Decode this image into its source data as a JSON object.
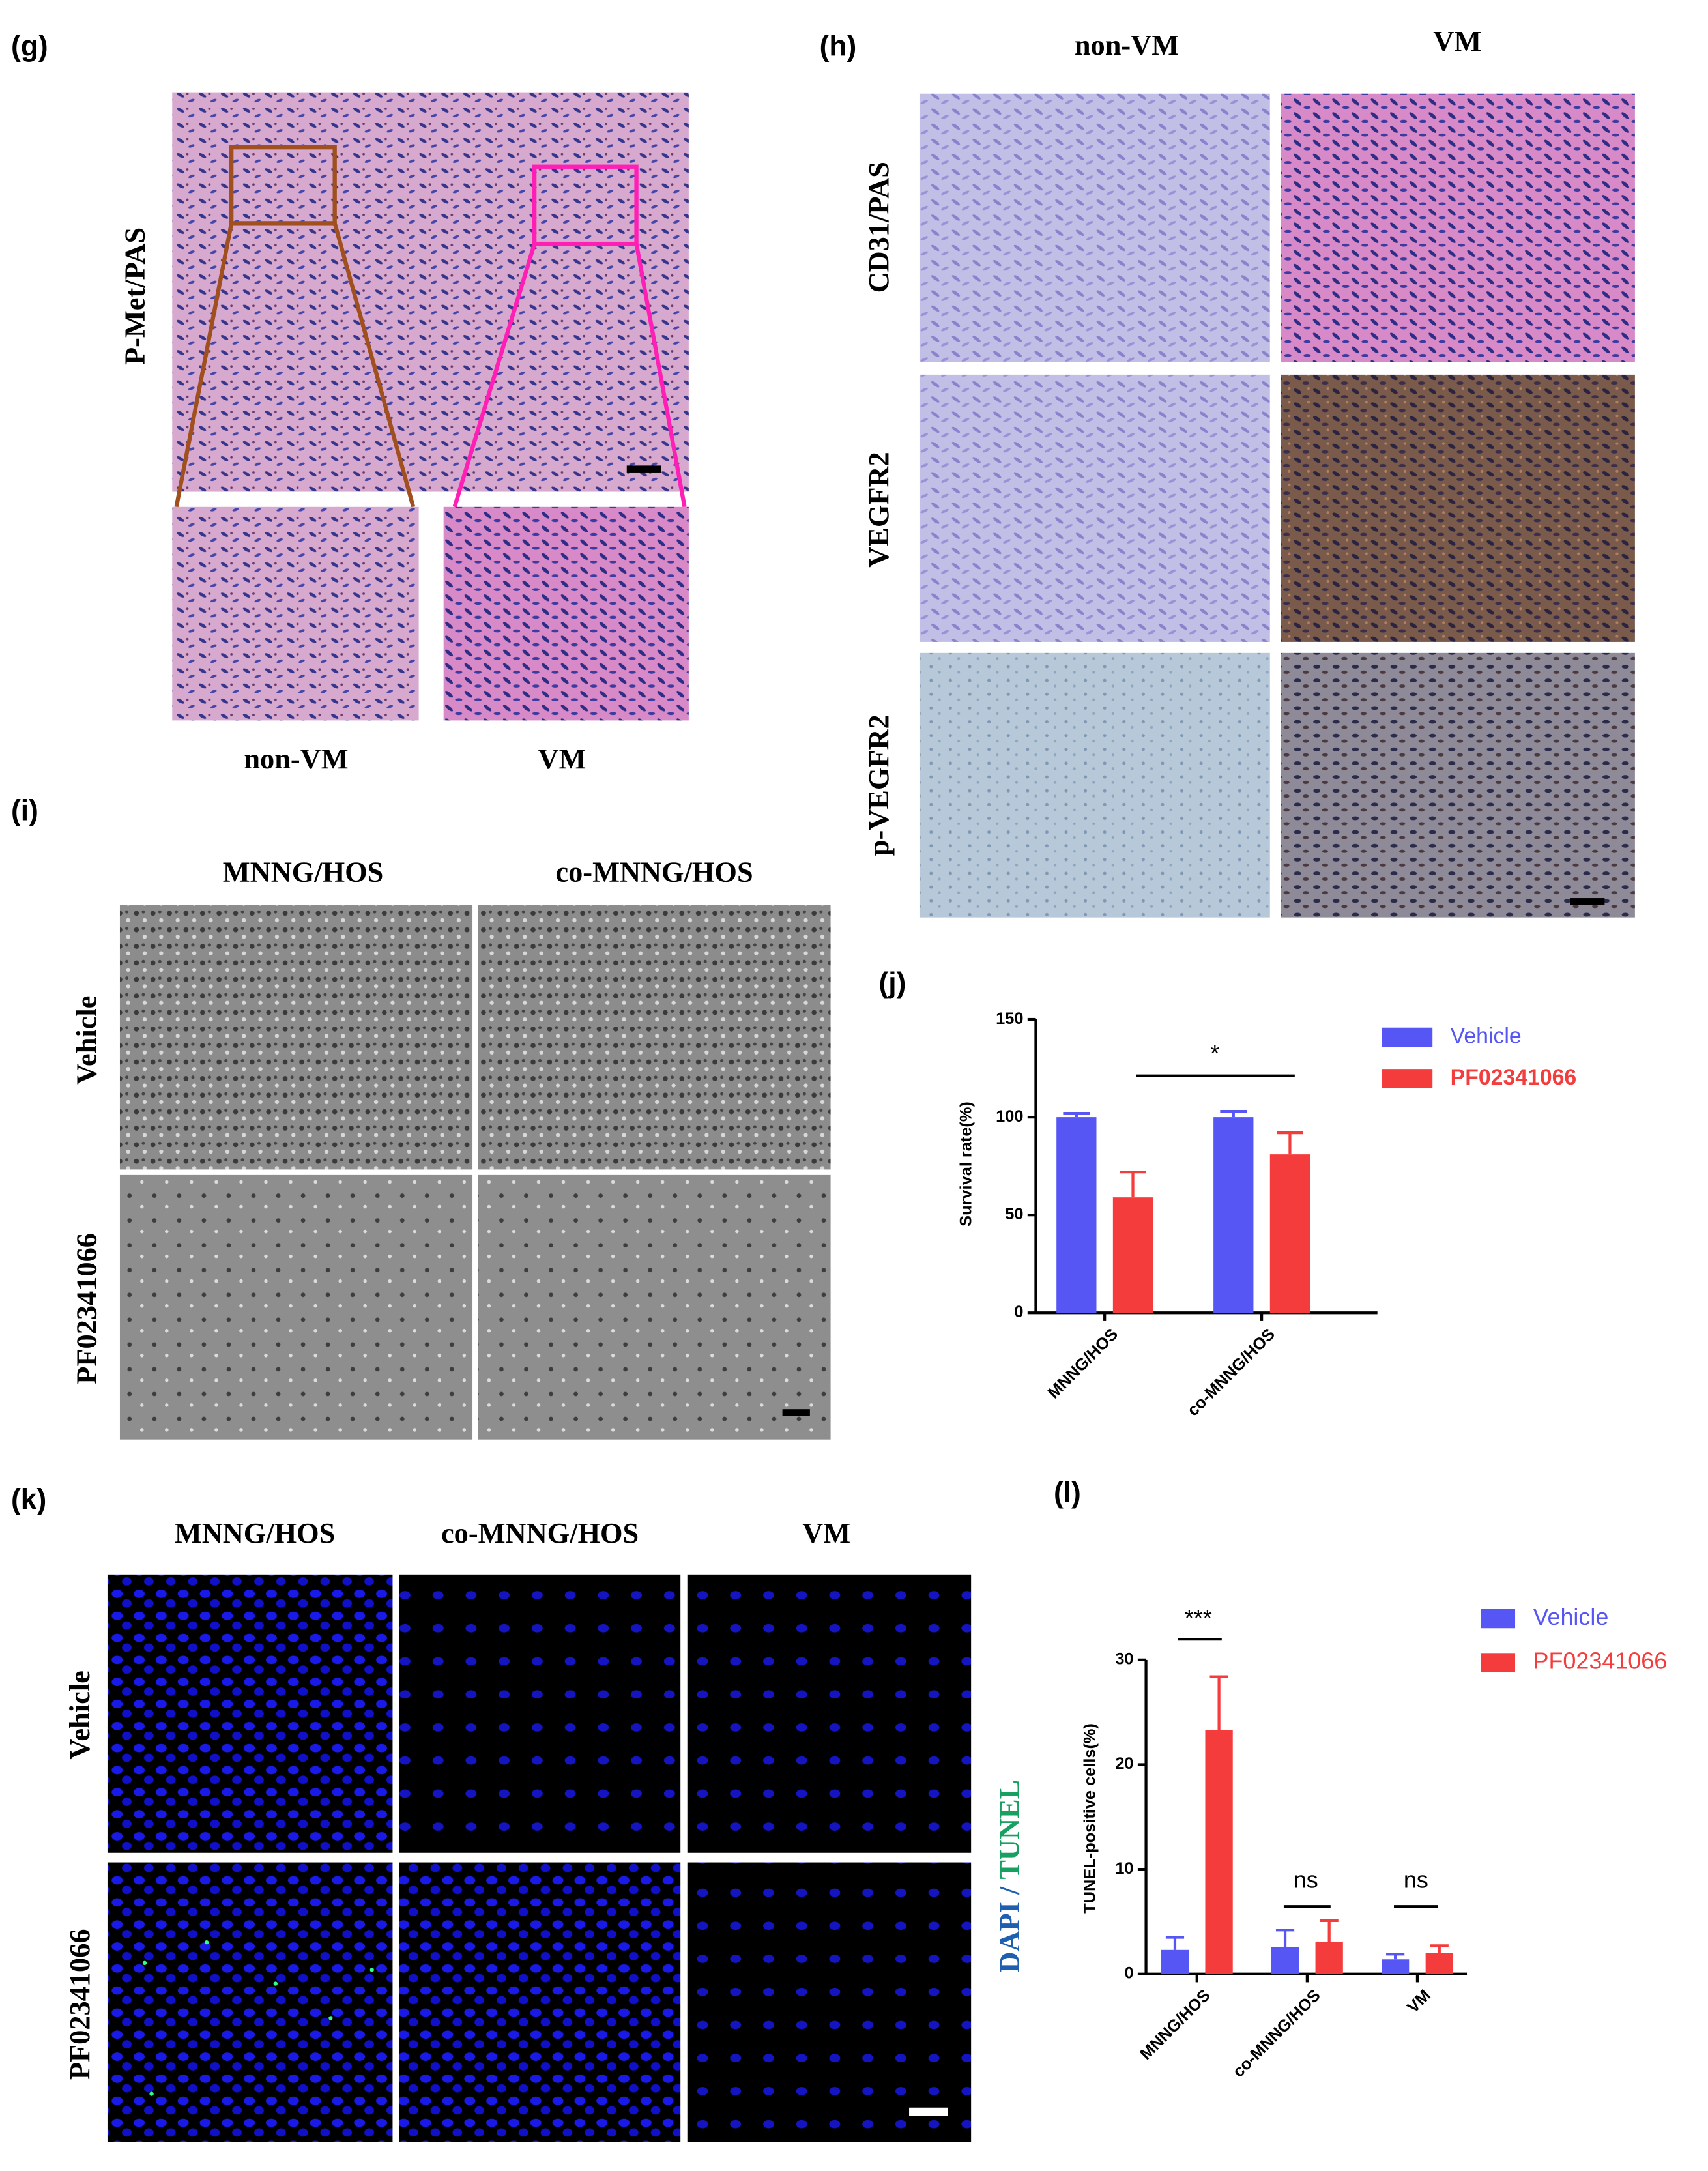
{
  "panels": {
    "g": {
      "label": "(g)",
      "row_label": "P-Met/PAS",
      "columns": [
        "non-VM",
        "VM"
      ]
    },
    "h": {
      "label": "(h)",
      "columns": [
        "non-VM",
        "VM"
      ],
      "rows": [
        "CD31/PAS",
        "VEGFR2",
        "p-VEGFR2"
      ]
    },
    "i": {
      "label": "(i)",
      "columns": [
        "MNNG/HOS",
        "co-MNNG/HOS"
      ],
      "rows": [
        "Vehicle",
        "PF02341066"
      ]
    },
    "k": {
      "label": "(k)",
      "columns": [
        "MNNG/HOS",
        "co-MNNG/HOS",
        "VM"
      ],
      "rows": [
        "Vehicle",
        "PF02341066"
      ],
      "stain": {
        "dapi": "DAPI",
        "separator": "/",
        "tunel": "TUNEL"
      }
    }
  },
  "chart_data": [
    {
      "type": "bar",
      "panel_label": "(j)",
      "y_label": "Survival rate(%)",
      "categories": [
        "MNNG/HOS",
        "co-MNNG/HOS"
      ],
      "series": [
        {
          "name": "Vehicle",
          "color": "#5656f5",
          "values": [
            100,
            100
          ],
          "errors": [
            2,
            3
          ]
        },
        {
          "name": "PF02341066",
          "color": "#f53c3c",
          "values": [
            59,
            81
          ],
          "errors": [
            13,
            11
          ]
        }
      ],
      "ylim": [
        0,
        150
      ],
      "yticks": [
        0,
        50,
        100,
        150
      ],
      "annotations": [
        "*"
      ]
    },
    {
      "type": "bar",
      "panel_label": "(l)",
      "y_label": "TUNEL-positive cells(%)",
      "categories": [
        "MNNG/HOS",
        "co-MNNG/HOS",
        "VM"
      ],
      "series": [
        {
          "name": "Vehicle",
          "color": "#5656f5",
          "values": [
            2.3,
            2.6,
            1.4
          ],
          "errors": [
            1.2,
            1.6,
            0.5
          ]
        },
        {
          "name": "PF02341066",
          "color": "#f53c3c",
          "values": [
            23.3,
            3.1,
            2.0
          ],
          "errors": [
            5.1,
            2.0,
            0.7
          ]
        }
      ],
      "ylim": [
        0,
        30
      ],
      "yticks": [
        0,
        10,
        20,
        30
      ],
      "annotations": [
        "***",
        "ns",
        "ns"
      ]
    }
  ]
}
